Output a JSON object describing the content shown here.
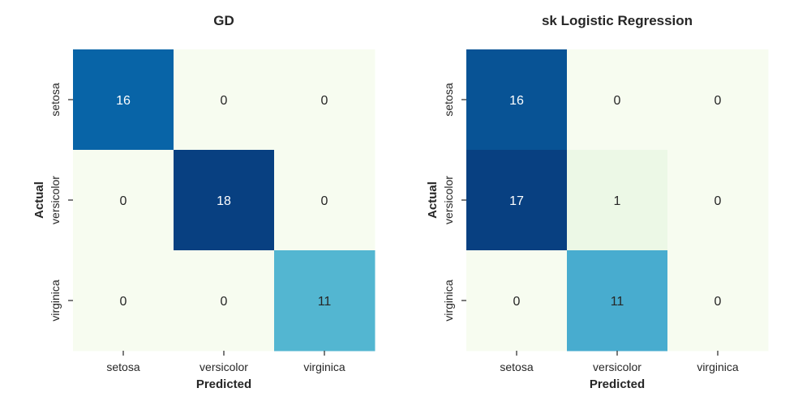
{
  "chart_data": [
    {
      "type": "heatmap",
      "title": "GD",
      "xlabel": "Predicted",
      "ylabel": "Actual",
      "x_categories": [
        "setosa",
        "versicolor",
        "virginica"
      ],
      "y_categories": [
        "setosa",
        "versicolor",
        "virginica"
      ],
      "values": [
        [
          16,
          0,
          0
        ],
        [
          0,
          18,
          0
        ],
        [
          0,
          0,
          11
        ]
      ],
      "colormap": "GnBu",
      "colorbar": false
    },
    {
      "type": "heatmap",
      "title": "sk Logistic Regression",
      "xlabel": "Predicted",
      "ylabel": "Actual",
      "x_categories": [
        "setosa",
        "versicolor",
        "virginica"
      ],
      "y_categories": [
        "setosa",
        "versicolor",
        "virginica"
      ],
      "values": [
        [
          16,
          0,
          0
        ],
        [
          17,
          1,
          0
        ],
        [
          0,
          11,
          0
        ]
      ],
      "colormap": "GnBu",
      "colorbar": false
    }
  ],
  "colors": {
    "cmap_stops": [
      "#f7fcf0",
      "#e0f3db",
      "#ccebc5",
      "#a8ddb5",
      "#7bccc4",
      "#4eb3d3",
      "#2b8cbe",
      "#0868ac",
      "#084081"
    ],
    "text_dark": "#262626",
    "text_light": "#ffffff"
  }
}
